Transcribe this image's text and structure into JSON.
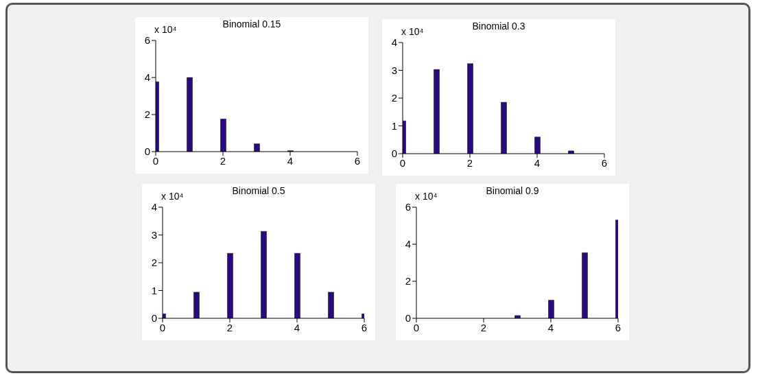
{
  "chart_data": [
    {
      "type": "bar",
      "title": "Binomial 0.15",
      "x": [
        0,
        1,
        2,
        3,
        4,
        5,
        6
      ],
      "values": [
        3.77,
        4.0,
        1.76,
        0.42,
        0.05,
        null,
        0
      ],
      "color": "#2a0a7f",
      "xlim": [
        0,
        6
      ],
      "xticks": [
        0,
        2,
        4,
        6
      ],
      "ylim": [
        0,
        6
      ],
      "yticks": [
        0,
        2,
        4,
        6
      ],
      "annotations": [
        "x 10⁴"
      ],
      "grid": false
    },
    {
      "type": "bar",
      "title": "Binomial 0.3",
      "x": [
        0,
        1,
        2,
        3,
        4,
        5
      ],
      "values": [
        1.18,
        3.03,
        3.24,
        1.85,
        0.6,
        0.1
      ],
      "color": "#2a0a7f",
      "xlim": [
        0,
        6
      ],
      "xticks": [
        0,
        2,
        4,
        6
      ],
      "ylim": [
        0,
        4
      ],
      "yticks": [
        0,
        1,
        2,
        3,
        4
      ],
      "annotations": [
        "x 10⁴"
      ],
      "grid": false
    },
    {
      "type": "bar",
      "title": "Binomial 0.5",
      "x": [
        0,
        1,
        2,
        3,
        4,
        5,
        6
      ],
      "values": [
        0.16,
        0.94,
        2.34,
        3.13,
        2.34,
        0.94,
        0.16
      ],
      "color": "#2a0a7f",
      "xlim": [
        0,
        6
      ],
      "xticks": [
        0,
        2,
        4,
        6
      ],
      "ylim": [
        0,
        4
      ],
      "yticks": [
        0,
        1,
        2,
        3,
        4
      ],
      "annotations": [
        "x 10⁴"
      ],
      "grid": false
    },
    {
      "type": "bar",
      "title": "Binomial 0.9",
      "x": [
        0,
        1,
        2,
        3,
        4,
        5,
        6
      ],
      "values": [
        0,
        0,
        null,
        0.15,
        0.98,
        3.54,
        5.31
      ],
      "color": "#2a0a7f",
      "xlim": [
        0,
        6
      ],
      "xticks": [
        0,
        2,
        4,
        6
      ],
      "ylim": [
        0,
        6
      ],
      "yticks": [
        0,
        2,
        4,
        6
      ],
      "annotations": [
        "x 10⁴"
      ],
      "grid": false
    }
  ]
}
